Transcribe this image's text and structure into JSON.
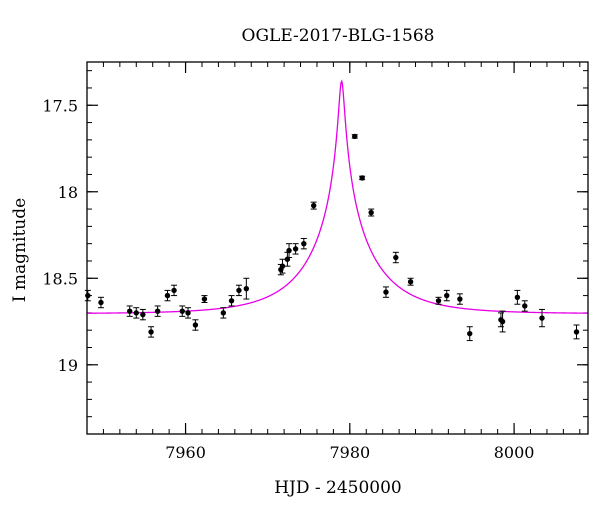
{
  "chart_data": {
    "type": "scatter",
    "title": "OGLE-2017-BLG-1568",
    "xlabel": "HJD - 2450000",
    "ylabel": "I magnitude",
    "xlim": [
      7948,
      8009
    ],
    "ylim": [
      19.4,
      17.25
    ],
    "y_inverted": true,
    "grid": false,
    "x_ticks": [
      7960,
      7980,
      8000
    ],
    "y_ticks": [
      17.5,
      18,
      18.5,
      19
    ],
    "x_tick_labels": [
      "7960",
      "7980",
      "8000"
    ],
    "y_tick_labels": [
      "17.5",
      "18",
      "18.5",
      "19"
    ],
    "x_minor_step": 2,
    "y_minor_step": 0.1,
    "colors": {
      "model": "#e600e6",
      "points": "#000000"
    },
    "series": [
      {
        "kind": "points",
        "x": [
          7948.1,
          7949.7,
          7953.2,
          7954.0,
          7954.8,
          7955.8,
          7956.6,
          7957.8,
          7958.6,
          7959.6,
          7960.3,
          7961.2,
          7962.3,
          7964.6,
          7965.6,
          7966.5,
          7967.4,
          7971.6,
          7971.8,
          7972.4,
          7972.6,
          7973.4,
          7974.4,
          7975.6,
          7980.6,
          7981.5,
          7982.6,
          7984.4,
          7985.6,
          7987.4,
          7990.8,
          7991.8,
          7993.4,
          7994.6,
          7998.4,
          7998.6,
          8000.4,
          8001.3,
          8003.4,
          8007.6
        ],
        "y": [
          18.6,
          18.64,
          18.69,
          18.7,
          18.71,
          18.81,
          18.69,
          18.6,
          18.57,
          18.69,
          18.7,
          18.77,
          18.62,
          18.7,
          18.63,
          18.57,
          18.56,
          18.45,
          18.43,
          18.39,
          18.34,
          18.33,
          18.3,
          18.08,
          17.68,
          17.92,
          18.12,
          18.58,
          18.38,
          18.52,
          18.63,
          18.6,
          18.62,
          18.82,
          18.74,
          18.75,
          18.61,
          18.66,
          18.73,
          18.81
        ],
        "yerr": [
          0.03,
          0.03,
          0.03,
          0.03,
          0.03,
          0.03,
          0.03,
          0.03,
          0.03,
          0.03,
          0.03,
          0.03,
          0.02,
          0.03,
          0.03,
          0.03,
          0.06,
          0.03,
          0.04,
          0.04,
          0.04,
          0.03,
          0.03,
          0.02,
          0.01,
          0.01,
          0.02,
          0.03,
          0.03,
          0.02,
          0.02,
          0.03,
          0.03,
          0.04,
          0.04,
          0.06,
          0.04,
          0.03,
          0.05,
          0.04
        ]
      },
      {
        "kind": "model",
        "t0": 7979.0,
        "u0": 0.04,
        "tE": 8.0,
        "baseline": 18.705,
        "peak": 17.36
      }
    ]
  }
}
